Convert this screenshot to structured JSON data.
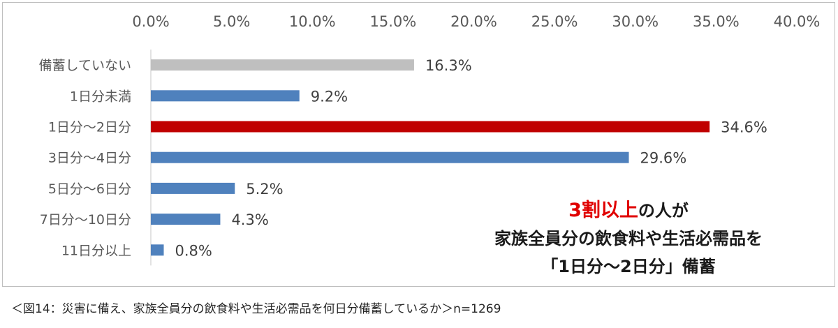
{
  "chart_data": {
    "type": "bar",
    "orientation": "horizontal",
    "categories": [
      "備蓄していない",
      "1日分未満",
      "1日分～2日分",
      "3日分～4日分",
      "5日分～6日分",
      "7日分～10日分",
      "11日分以上"
    ],
    "values": [
      16.3,
      9.2,
      34.6,
      29.6,
      5.2,
      4.3,
      0.8
    ],
    "value_labels": [
      "16.3%",
      "9.2%",
      "34.6%",
      "29.6%",
      "5.2%",
      "4.3%",
      "0.8%"
    ],
    "bar_colors": [
      "#bfbfbf",
      "#4f81bd",
      "#c00000",
      "#4f81bd",
      "#4f81bd",
      "#4f81bd",
      "#4f81bd"
    ],
    "xlim": [
      0,
      40
    ],
    "x_ticks": [
      "0.0%",
      "5.0%",
      "10.0%",
      "15.0%",
      "20.0%",
      "25.0%",
      "30.0%",
      "35.0%",
      "40.0%"
    ],
    "x_axis_position": "top",
    "grid": false
  },
  "callout": {
    "highlight": "3割以上",
    "line1_rest": "の人が",
    "line2": "家族全員分の飲食料や生活必需品を",
    "line3": "「1日分～2日分」備蓄",
    "highlight_color": "#e00000"
  },
  "caption": "＜図14：災害に備え、家族全員分の飲食料や生活必需品を何日分備蓄しているか＞n=1269"
}
